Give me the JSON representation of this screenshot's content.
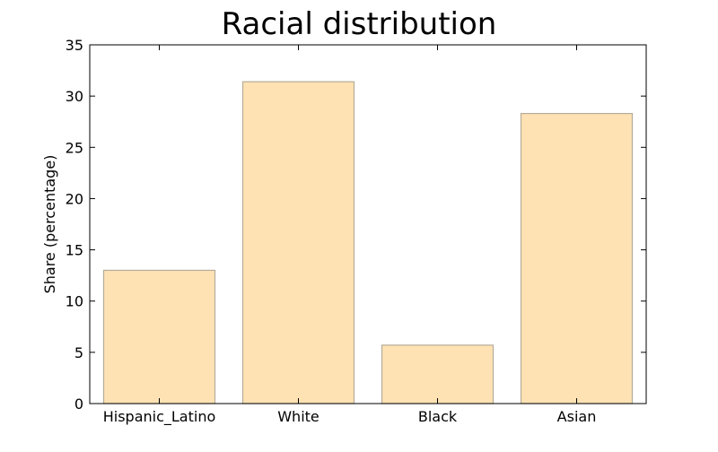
{
  "chart_data": {
    "type": "bar",
    "title": "Racial distribution",
    "xlabel": "",
    "ylabel": "Share (percentage)",
    "categories": [
      "Hispanic_Latino",
      "White",
      "Black",
      "Asian"
    ],
    "values": [
      13.0,
      31.4,
      5.7,
      28.3
    ],
    "ylim": [
      0,
      35
    ],
    "yticks": [
      "0",
      "5",
      "10",
      "15",
      "20",
      "25",
      "30",
      "35"
    ],
    "grid": false,
    "bar_fill": "#fee2b3",
    "bar_stroke": "#b5ac9a",
    "axis_color": "#000000"
  }
}
